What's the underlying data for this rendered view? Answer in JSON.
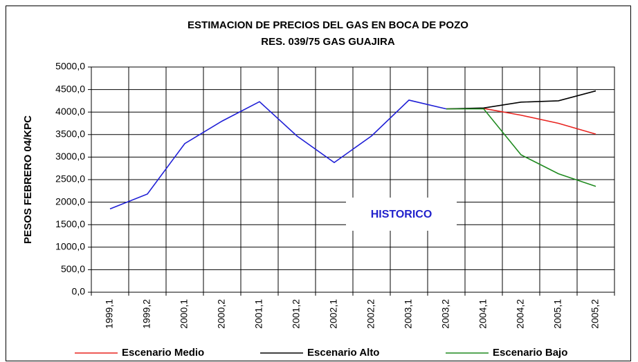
{
  "chart_data": {
    "type": "line",
    "title": "ESTIMACION DE PRECIOS DEL GAS EN BOCA DE POZO",
    "subtitle": "RES. 039/75 GAS GUAJIRA",
    "y_label": "PESOS FEBRERO 04/KPC",
    "categories": [
      "1999,1",
      "1999,2",
      "2000,1",
      "2000,2",
      "2001,1",
      "2001,2",
      "2002,1",
      "2002,2",
      "2003,1",
      "2003,2",
      "2004,1",
      "2004,2",
      "2005,1",
      "2005,2"
    ],
    "series": [
      {
        "name": "HISTORICO",
        "color": "#1f1fd6",
        "legend": false,
        "values": [
          1850,
          2180,
          3300,
          3800,
          4230,
          3470,
          2880,
          3470,
          4265,
          4070,
          null,
          null,
          null,
          null
        ]
      },
      {
        "name": "Escenario Medio",
        "color": "#e8231f",
        "values": [
          null,
          null,
          null,
          null,
          null,
          null,
          null,
          null,
          null,
          4070,
          4080,
          3930,
          3750,
          3510
        ]
      },
      {
        "name": "Escenario Alto",
        "color": "#000000",
        "values": [
          null,
          null,
          null,
          null,
          null,
          null,
          null,
          null,
          null,
          4070,
          4090,
          4220,
          4250,
          4470
        ]
      },
      {
        "name": "Escenario Bajo",
        "color": "#1f8a1f",
        "values": [
          null,
          null,
          null,
          null,
          null,
          null,
          null,
          null,
          null,
          4070,
          4070,
          3050,
          2630,
          2350
        ]
      }
    ],
    "ylim": [
      0,
      5000
    ],
    "yticks": [
      {
        "value": 0,
        "label": "0,0"
      },
      {
        "value": 500,
        "label": "500,0"
      },
      {
        "value": 1000,
        "label": "1000,0"
      },
      {
        "value": 1500,
        "label": "1500,0"
      },
      {
        "value": 2000,
        "label": "2000,0"
      },
      {
        "value": 2500,
        "label": "2500,0"
      },
      {
        "value": 3000,
        "label": "3000,0"
      },
      {
        "value": 3500,
        "label": "3500,0"
      },
      {
        "value": 4000,
        "label": "4000,0"
      },
      {
        "value": 4500,
        "label": "4500,0"
      },
      {
        "value": 5000,
        "label": "5000,0"
      }
    ],
    "grid": true
  }
}
